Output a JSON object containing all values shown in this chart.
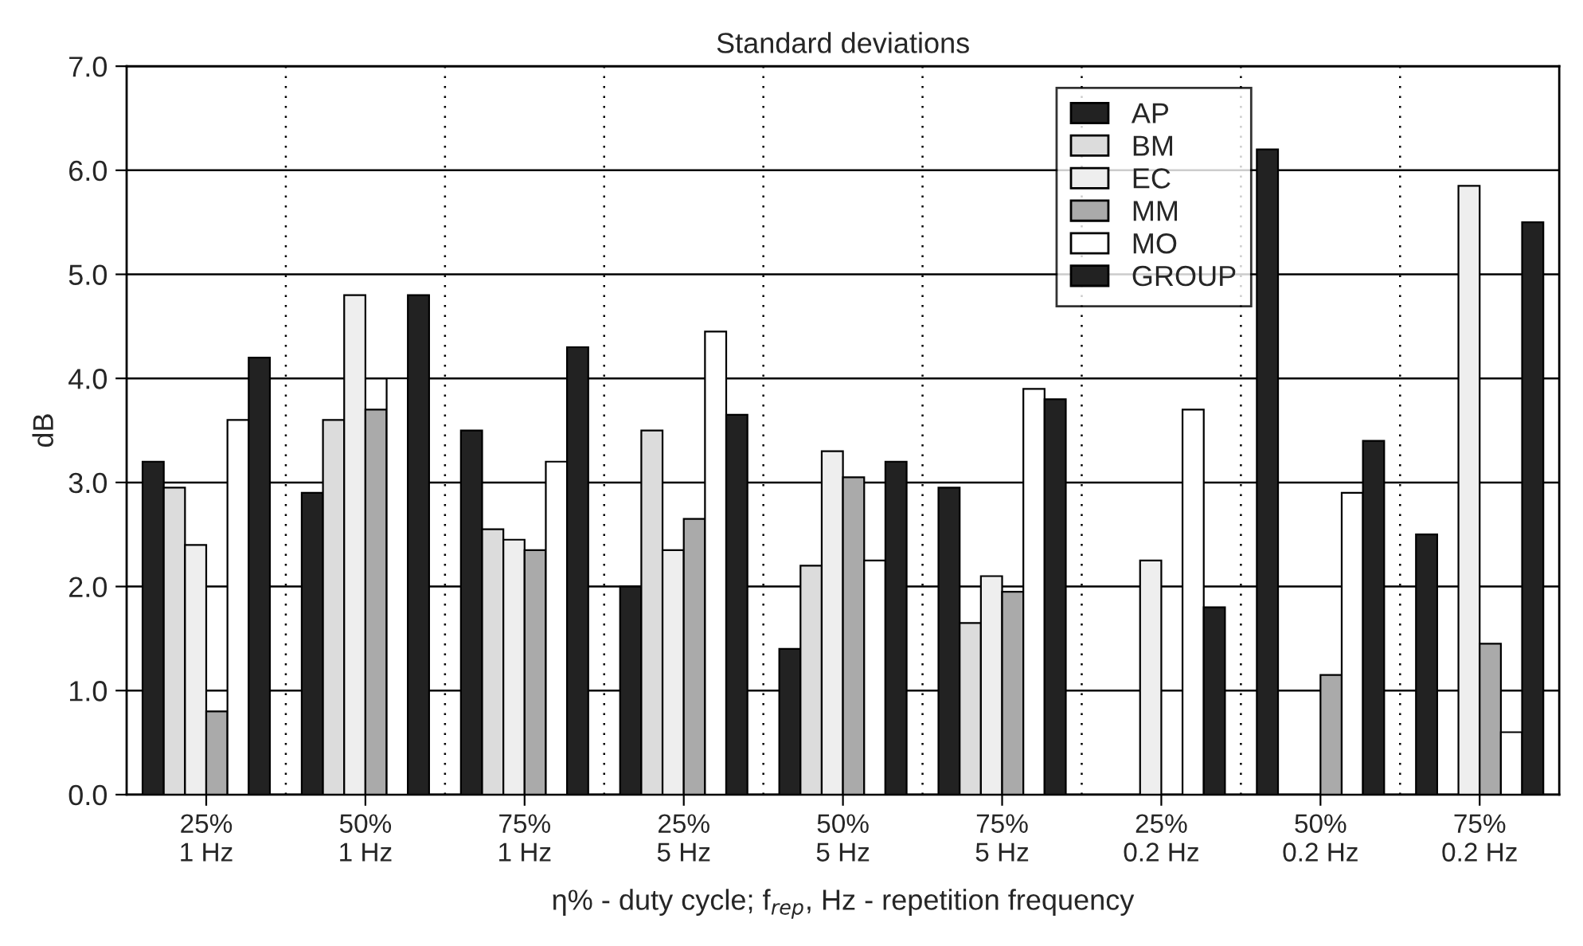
{
  "chart_data": {
    "type": "bar",
    "title": "Standard deviations",
    "xlabel": "η% - duty cycle; f$_{rep}$, Hz - repetition frequency",
    "ylabel": "dB",
    "categories": [
      "25%\n1 Hz",
      "50%\n1 Hz",
      "75%\n1 Hz",
      "25%\n5 Hz",
      "50%\n5 Hz",
      "75%\n5 Hz",
      "25%\n0.2 Hz",
      "50%\n0.2 Hz",
      "75%\n0.2 Hz"
    ],
    "series": [
      {
        "name": "AP",
        "color": "#222222",
        "values": [
          3.2,
          2.9,
          3.5,
          2.0,
          1.4,
          2.95,
          null,
          6.2,
          2.5
        ]
      },
      {
        "name": "BM",
        "color": "#dcdcdc",
        "values": [
          2.95,
          3.6,
          2.55,
          3.5,
          2.2,
          1.65,
          null,
          null,
          null
        ]
      },
      {
        "name": "EC",
        "color": "#eeeeee",
        "values": [
          2.4,
          4.8,
          2.45,
          2.35,
          3.3,
          2.1,
          2.25,
          null,
          5.85
        ]
      },
      {
        "name": "MM",
        "color": "#aaaaaa",
        "values": [
          0.8,
          3.7,
          2.35,
          2.65,
          3.05,
          1.95,
          null,
          1.15,
          1.45
        ]
      },
      {
        "name": "MO",
        "color": "#ffffff",
        "values": [
          3.6,
          4.0,
          3.2,
          4.45,
          2.25,
          3.9,
          3.7,
          2.9,
          0.6
        ]
      },
      {
        "name": "GROUP",
        "color": "#222222",
        "values": [
          4.2,
          4.8,
          4.3,
          3.65,
          3.2,
          3.8,
          1.8,
          3.4,
          5.5
        ]
      }
    ],
    "ylim": [
      0,
      7
    ],
    "yticks": [
      {
        "value": 0,
        "label": "0.0"
      },
      {
        "value": 1,
        "label": "1.0"
      },
      {
        "value": 2,
        "label": "2.0"
      },
      {
        "value": 3,
        "label": "3.0"
      },
      {
        "value": 4,
        "label": "4.0"
      },
      {
        "value": 5,
        "label": "5.0"
      },
      {
        "value": 6,
        "label": "6.0"
      },
      {
        "value": 7,
        "label": "7.0"
      }
    ],
    "grid": "y",
    "legend": "top right"
  }
}
